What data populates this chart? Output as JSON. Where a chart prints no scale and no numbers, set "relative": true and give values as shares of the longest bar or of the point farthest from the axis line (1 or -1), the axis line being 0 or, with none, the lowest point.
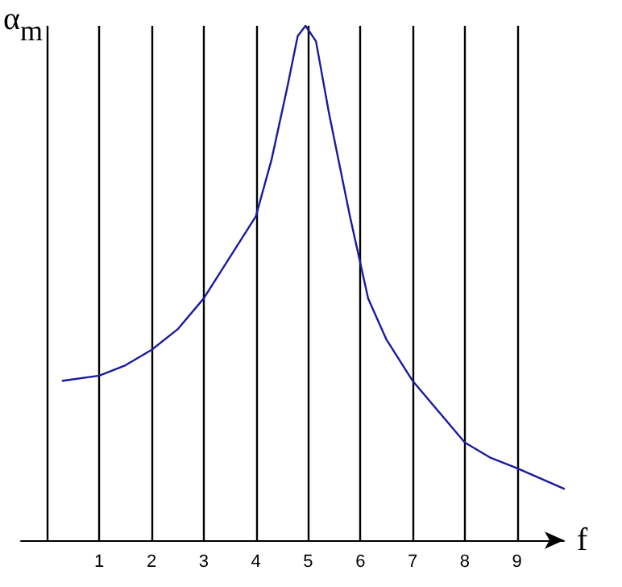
{
  "chart_data": {
    "type": "line",
    "xlabel": "f",
    "ylabel": "α$_{m}$",
    "relative": true,
    "xlim": [
      -0.5,
      9.9
    ],
    "xticks": [
      {
        "value": 0,
        "label": null
      },
      1,
      2,
      3,
      4,
      5,
      6,
      7,
      8,
      9
    ],
    "grid": "x",
    "marker": "none",
    "line_style": "solid",
    "series": [
      {
        "color": "#1a1aa0",
        "x": [
          0.3,
          1,
          1.5,
          2,
          2.5,
          3,
          3.5,
          4,
          4.3,
          4.6,
          4.8,
          4.95,
          5.15,
          5.4,
          5.8,
          6.15,
          6.5,
          7,
          7.5,
          8,
          8.5,
          9,
          9.9
        ],
        "values": [
          0.31,
          0.32,
          0.34,
          0.37,
          0.41,
          0.47,
          0.55,
          0.63,
          0.74,
          0.88,
          0.98,
          1,
          0.97,
          0.83,
          0.63,
          0.47,
          0.39,
          0.31,
          0.25,
          0.19,
          0.16,
          0.14,
          0.1
        ]
      }
    ]
  }
}
